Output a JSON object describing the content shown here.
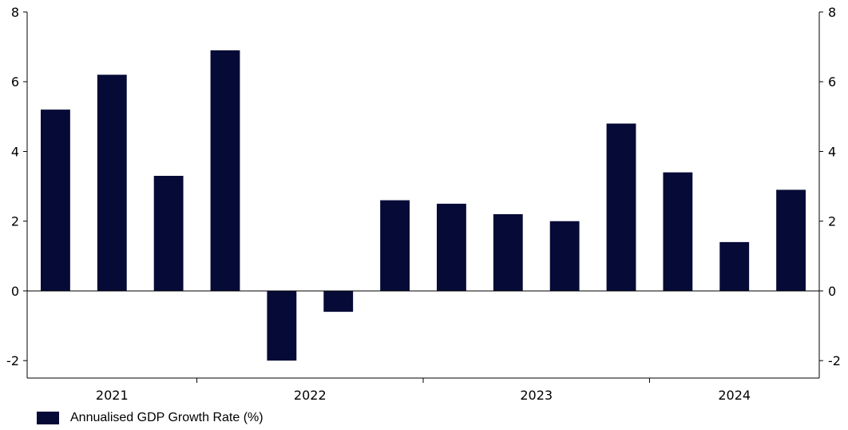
{
  "chart_data": {
    "type": "bar",
    "title": "",
    "xlabel": "",
    "ylabel": "",
    "ylim": [
      -2.5,
      8
    ],
    "yticks": [
      -2,
      0,
      2,
      4,
      6,
      8
    ],
    "y_tick_labels": [
      "-2",
      "0",
      "2",
      "4",
      "6",
      "8"
    ],
    "dual_y_axis": true,
    "grid": false,
    "legend_position": "bottom-left",
    "bar_color": "#050a36",
    "year_labels": [
      "2021",
      "2022",
      "2023",
      "2024"
    ],
    "series": [
      {
        "name": "Annualised GDP Growth Rate (%)",
        "values": [
          5.2,
          6.2,
          3.3,
          6.9,
          -2.0,
          -0.6,
          2.6,
          2.5,
          2.2,
          2.0,
          4.8,
          3.4,
          1.4,
          2.9
        ]
      }
    ]
  }
}
